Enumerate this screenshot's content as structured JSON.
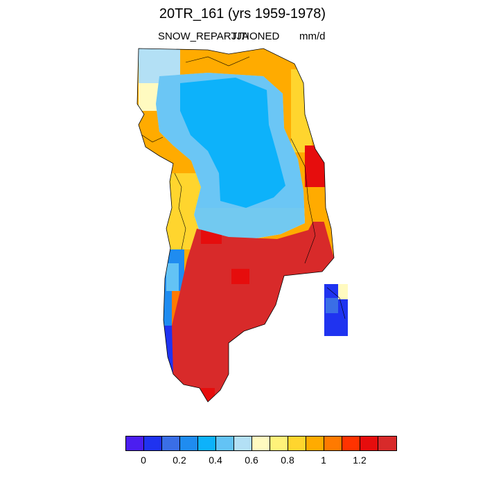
{
  "title": "20TR_161 (yrs 1959-1978)",
  "variable": "SNOW_REPARTITIONED",
  "season": "JJA",
  "units": "mm/d",
  "colorbar": {
    "colors": [
      "#4b1ef0",
      "#1f33f0",
      "#3a6ee6",
      "#1f8cf0",
      "#0db2fa",
      "#63c3f5",
      "#b3e0f5",
      "#fffac0",
      "#fff27a",
      "#ffd52e",
      "#ffab00",
      "#ff7a00",
      "#ff3300",
      "#e60d0d",
      "#d82a2a"
    ],
    "tick_labels": [
      "0",
      "0.2",
      "0.4",
      "0.6",
      "0.8",
      "1",
      "1.2"
    ]
  },
  "map": {
    "region": "Greenland",
    "legend_values": "snow repartitioned mm/d"
  }
}
